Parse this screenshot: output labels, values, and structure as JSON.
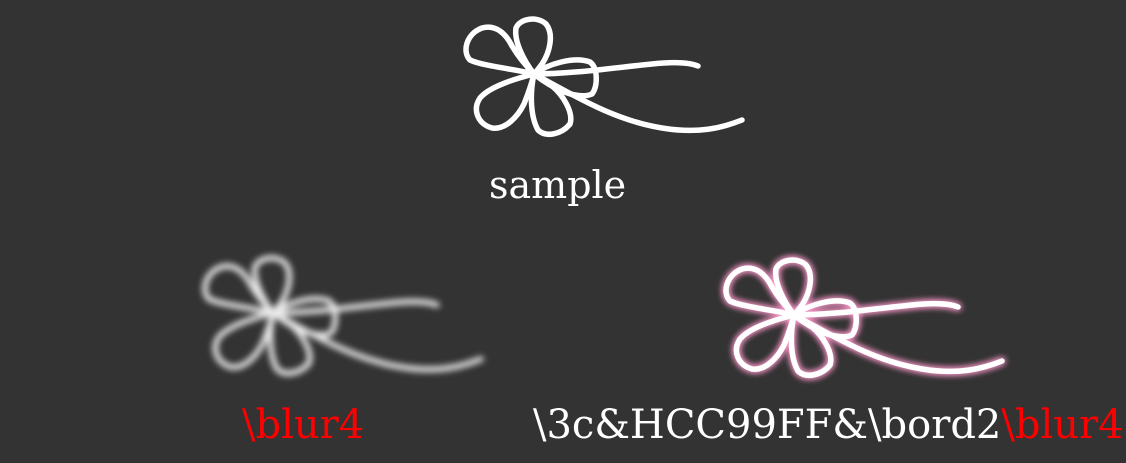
{
  "sample": {
    "label": "sample",
    "icon": "flower-ribbon-icon"
  },
  "blur_example": {
    "label": "\\blur4",
    "label_color": "#ff0000",
    "icon": "flower-ribbon-icon"
  },
  "border_blur_example": {
    "label_part1": "\\3c&HCC99FF&\\bord2",
    "label_part2": "\\blur4",
    "part1_color": "#ffffff",
    "part2_color": "#ff0000",
    "glow_color": "#FF99CC",
    "icon": "flower-ribbon-icon"
  },
  "colors": {
    "background": "#333333",
    "stroke": "#ffffff"
  }
}
